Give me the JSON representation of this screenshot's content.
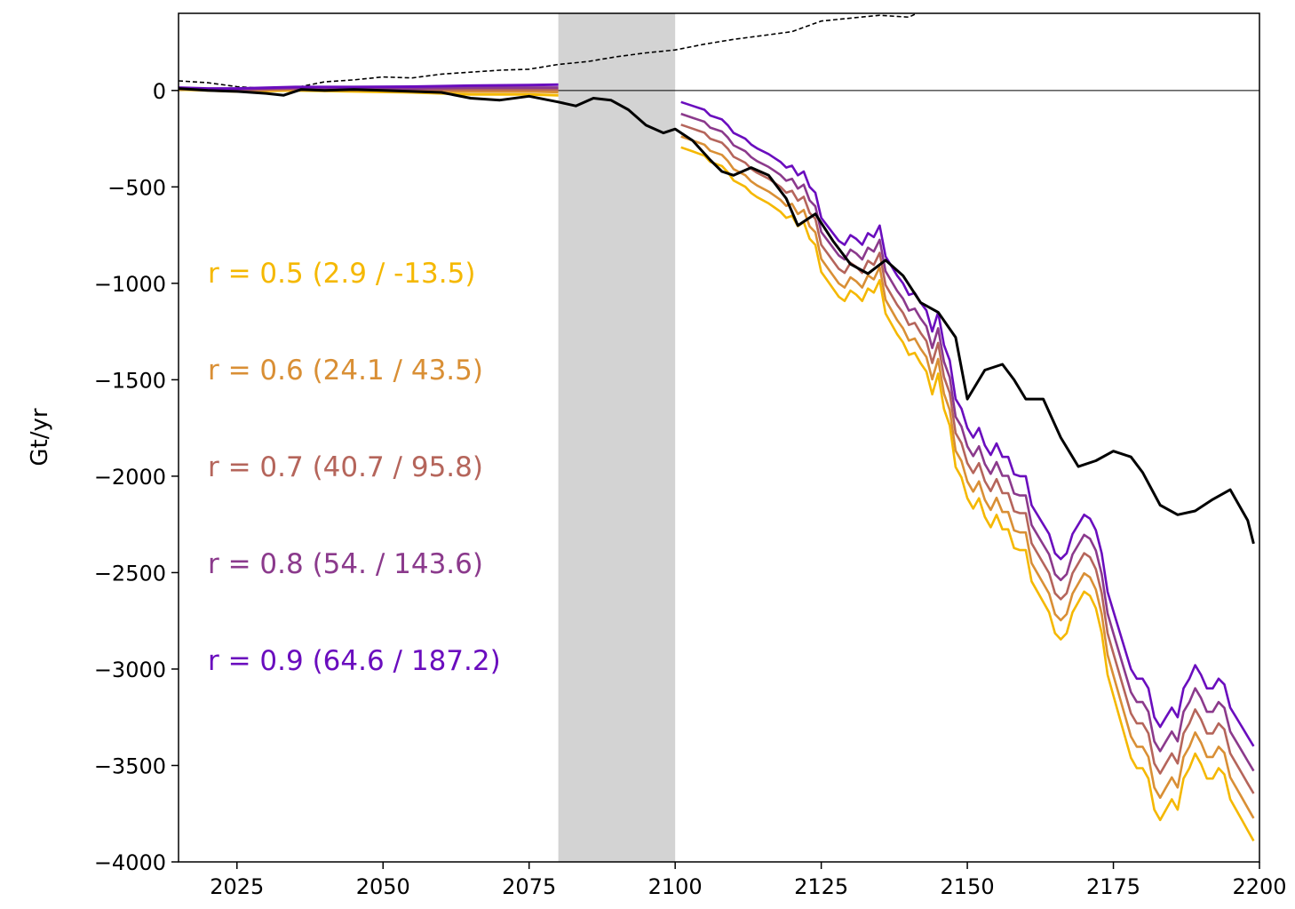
{
  "chart_data": {
    "type": "line",
    "ylabel": "Gt/yr",
    "xlim": [
      2015,
      2200
    ],
    "ylim": [
      -4000,
      400
    ],
    "x_ticks": [
      2025,
      2050,
      2075,
      2100,
      2125,
      2150,
      2175,
      2200
    ],
    "y_ticks": [
      0,
      -500,
      -1000,
      -1500,
      -2000,
      -2500,
      -3000,
      -3500,
      -4000
    ],
    "y_tick_labels": [
      "0",
      "−500",
      "−1000",
      "−1500",
      "−2000",
      "−2500",
      "−3000",
      "−3500",
      "−4000"
    ],
    "zero_line": true,
    "shaded_span": [
      2080,
      2100
    ],
    "shade_color": "#d3d3d3",
    "annotations": [
      {
        "text": "r = 0.5  (2.9 / -13.5)",
        "color": "#f5b800"
      },
      {
        "text": "r = 0.6  (24.1 / 43.5)",
        "color": "#d98f35"
      },
      {
        "text": "r = 0.7  (40.7 / 95.8)",
        "color": "#b5655b"
      },
      {
        "text": "r = 0.8  (54. / 143.6)",
        "color": "#8b3a8c"
      },
      {
        "text": "r = 0.9  (64.6 / 187.2)",
        "color": "#6a0dbe"
      }
    ],
    "dashed_series": {
      "color": "#000000",
      "x": [
        2015,
        2020,
        2025,
        2030,
        2035,
        2040,
        2045,
        2050,
        2055,
        2060,
        2065,
        2070,
        2075,
        2080,
        2085,
        2090,
        2095,
        2100,
        2105,
        2110,
        2115,
        2120,
        2125,
        2130,
        2135,
        2140,
        2141
      ],
      "y": [
        50,
        40,
        20,
        10,
        15,
        45,
        55,
        70,
        65,
        85,
        95,
        105,
        110,
        135,
        150,
        175,
        195,
        210,
        240,
        265,
        285,
        305,
        360,
        375,
        390,
        380,
        395
      ]
    },
    "observed_series": {
      "color": "#000000",
      "x": [
        2015,
        2020,
        2025,
        2030,
        2033,
        2036,
        2040,
        2045,
        2050,
        2055,
        2060,
        2065,
        2070,
        2075,
        2080,
        2083,
        2086,
        2089,
        2092,
        2095,
        2098,
        2100,
        2103,
        2106,
        2108,
        2110,
        2113,
        2116,
        2119,
        2121,
        2124,
        2127,
        2130,
        2133,
        2136,
        2139,
        2142,
        2145,
        2148,
        2150,
        2153,
        2156,
        2158,
        2160,
        2163,
        2166,
        2169,
        2172,
        2175,
        2178,
        2180,
        2183,
        2186,
        2189,
        2192,
        2195,
        2198,
        2199
      ],
      "y": [
        10,
        0,
        -5,
        -15,
        -25,
        5,
        0,
        5,
        0,
        -5,
        -10,
        -40,
        -50,
        -30,
        -60,
        -80,
        -40,
        -50,
        -100,
        -180,
        -220,
        -200,
        -260,
        -360,
        -420,
        -440,
        -400,
        -440,
        -560,
        -700,
        -640,
        -780,
        -900,
        -950,
        -880,
        -960,
        -1100,
        -1150,
        -1280,
        -1600,
        -1450,
        -1420,
        -1500,
        -1600,
        -1600,
        -1800,
        -1950,
        -1920,
        -1870,
        -1900,
        -1980,
        -2150,
        -2200,
        -2180,
        -2120,
        -2070,
        -2230,
        -2350
      ]
    },
    "model_x": [
      2101,
      2103,
      2104,
      2105,
      2106,
      2108,
      2109,
      2110,
      2112,
      2113,
      2114,
      2116,
      2117,
      2118,
      2119,
      2120,
      2121,
      2122,
      2123,
      2124,
      2125,
      2126,
      2128,
      2129,
      2130,
      2131,
      2132,
      2133,
      2134,
      2135,
      2136,
      2138,
      2139,
      2140,
      2141,
      2142,
      2143,
      2144,
      2145,
      2146,
      2147,
      2148,
      2149,
      2150,
      2151,
      2152,
      2153,
      2154,
      2155,
      2156,
      2157,
      2158,
      2159,
      2160,
      2161,
      2162,
      2163,
      2164,
      2165,
      2166,
      2167,
      2168,
      2169,
      2170,
      2171,
      2172,
      2173,
      2174,
      2175,
      2176,
      2177,
      2178,
      2179,
      2180,
      2181,
      2182,
      2183,
      2184,
      2185,
      2186,
      2187,
      2188,
      2189,
      2190,
      2191,
      2192,
      2193,
      2194,
      2195,
      2196,
      2197,
      2198,
      2199
    ],
    "model_base": [
      -60,
      -80,
      -90,
      -100,
      -130,
      -150,
      -180,
      -220,
      -250,
      -280,
      -300,
      -330,
      -350,
      -370,
      -400,
      -390,
      -440,
      -420,
      -500,
      -530,
      -660,
      -700,
      -780,
      -800,
      -750,
      -770,
      -800,
      -740,
      -760,
      -700,
      -860,
      -960,
      -1000,
      -1060,
      -1050,
      -1100,
      -1140,
      -1250,
      -1150,
      -1320,
      -1400,
      -1600,
      -1650,
      -1750,
      -1800,
      -1750,
      -1840,
      -1890,
      -1830,
      -1900,
      -1900,
      -1990,
      -2000,
      -2000,
      -2150,
      -2200,
      -2250,
      -2300,
      -2400,
      -2430,
      -2400,
      -2300,
      -2250,
      -2200,
      -2220,
      -2280,
      -2400,
      -2600,
      -2700,
      -2800,
      -2900,
      -3000,
      -3050,
      -3050,
      -3100,
      -3250,
      -3300,
      -3250,
      -3200,
      -3250,
      -3100,
      -3050,
      -2980,
      -3030,
      -3100,
      -3100,
      -3050,
      -3080,
      -3200,
      -3250,
      -3300,
      -3350,
      -3400
    ],
    "series": [
      {
        "name": "r = 0.5",
        "color": "#f5b800",
        "offset": -230,
        "early": [
          5,
          0,
          -5,
          0,
          -5,
          -10,
          -20,
          -20,
          -25
        ]
      },
      {
        "name": "r = 0.6",
        "color": "#d98f35",
        "offset": -175,
        "early": [
          8,
          3,
          0,
          5,
          3,
          0,
          -5,
          -5,
          -8
        ]
      },
      {
        "name": "r = 0.7",
        "color": "#b5655b",
        "offset": -115,
        "early": [
          10,
          5,
          3,
          10,
          8,
          5,
          5,
          5,
          5
        ]
      },
      {
        "name": "r = 0.8",
        "color": "#8b3a8c",
        "offset": -60,
        "early": [
          12,
          7,
          7,
          13,
          12,
          10,
          15,
          15,
          15
        ]
      },
      {
        "name": "r = 0.9",
        "color": "#6a0dbe",
        "offset": 0,
        "early": [
          15,
          10,
          10,
          18,
          18,
          20,
          25,
          28,
          30
        ]
      }
    ],
    "early_x": [
      2015,
      2020,
      2025,
      2035,
      2045,
      2055,
      2065,
      2075,
      2080
    ]
  }
}
